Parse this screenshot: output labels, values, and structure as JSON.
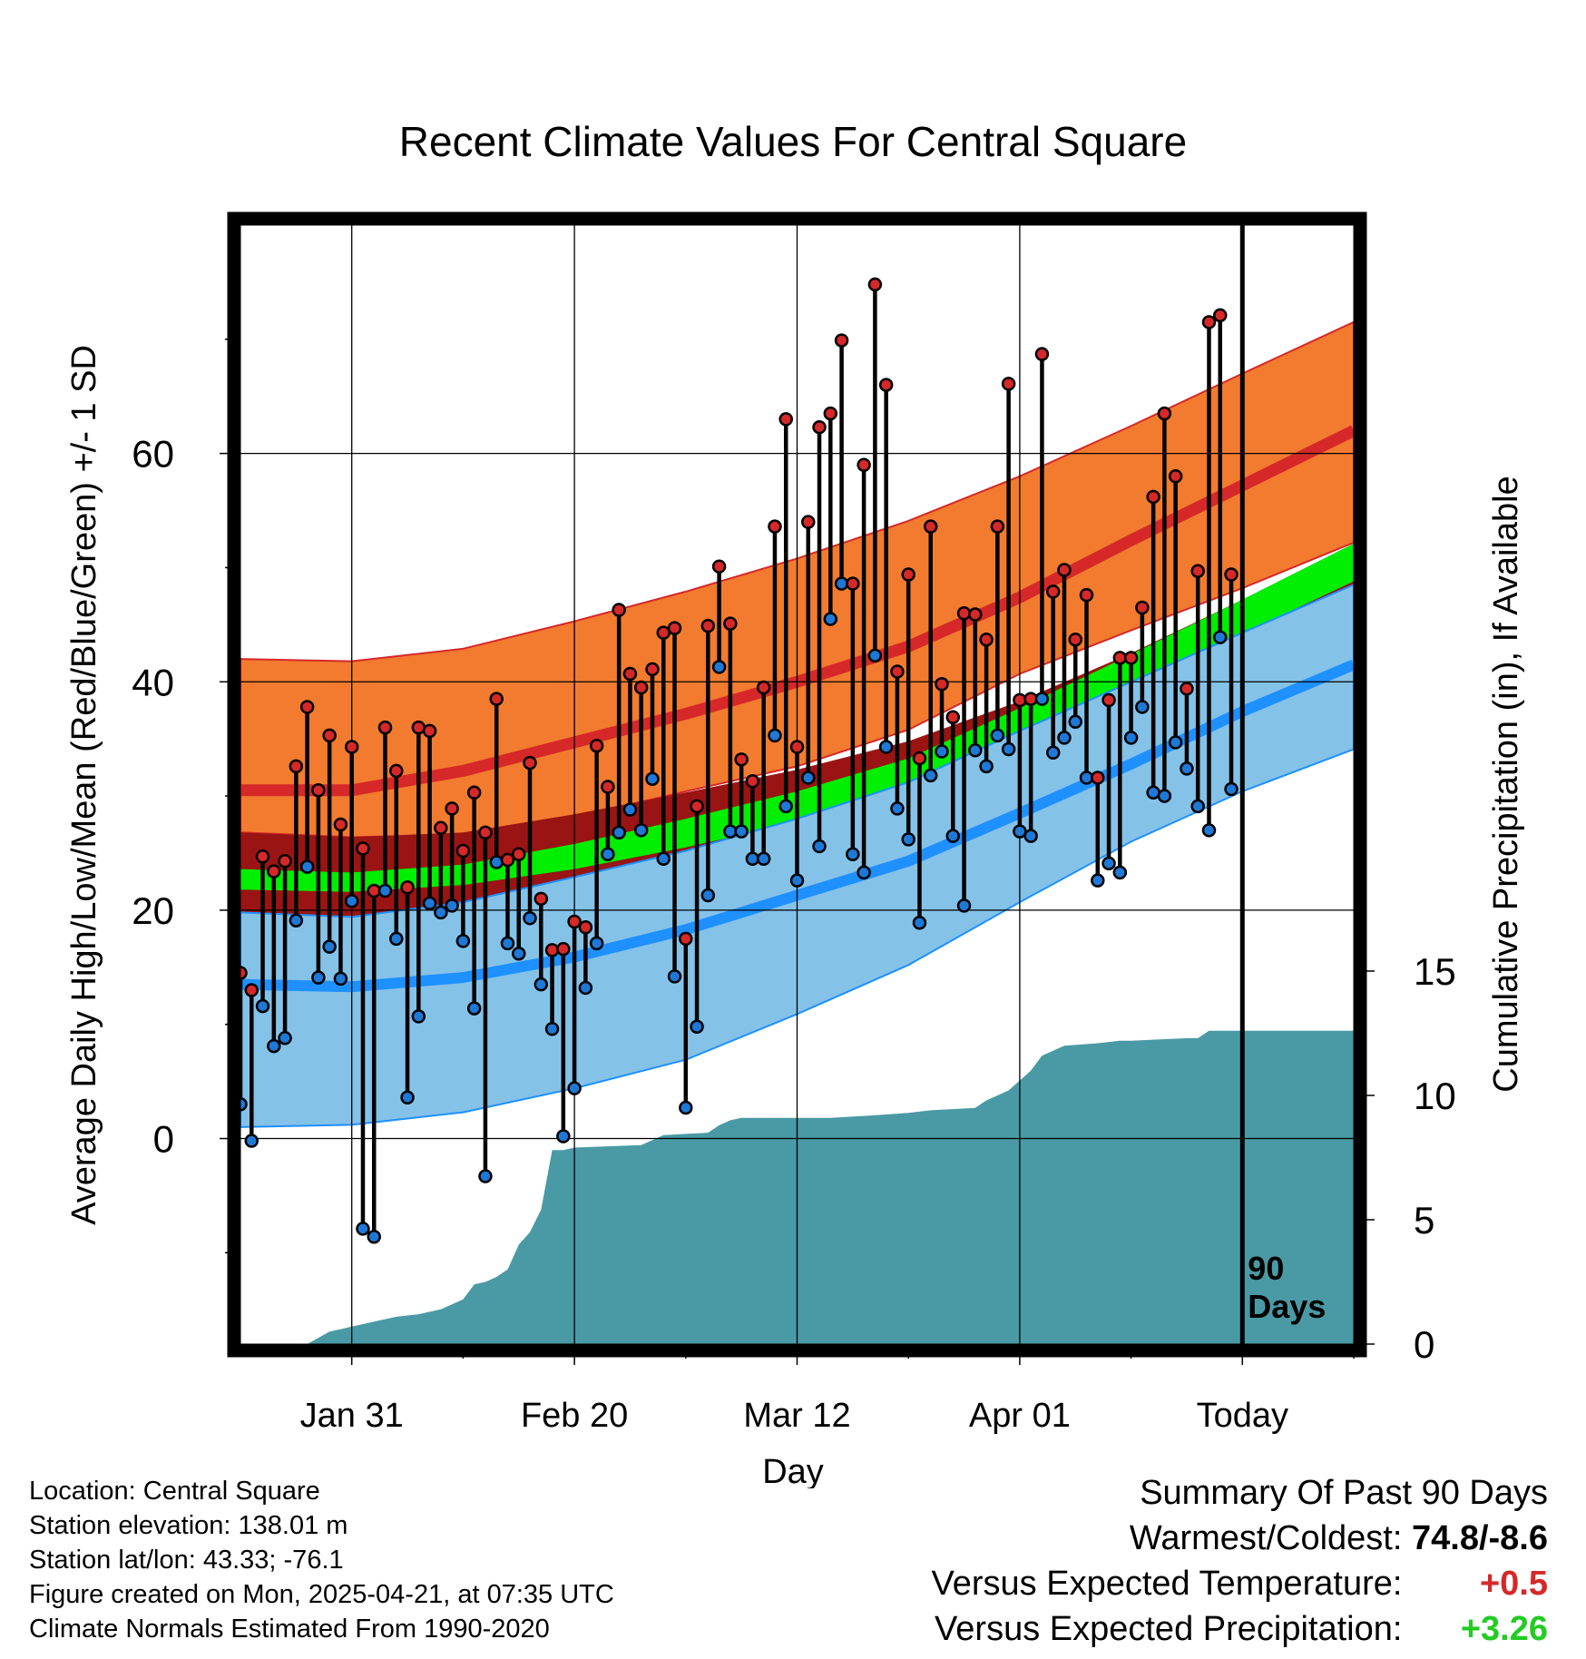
{
  "chart_data": {
    "type": "line",
    "title": "Recent Climate Values For Central Square",
    "xlabel": "Day",
    "ylabel": "Average Daily High/Low/Mean (Red/Blue/Green) +/- 1 SD",
    "y2label": "Cumulative Precipitation (in), If Available",
    "xlim": [
      0,
      100
    ],
    "ylim": [
      -18,
      80
    ],
    "y2lim": [
      0,
      45
    ],
    "x_ticks": [
      {
        "x": 10,
        "label": "Jan 31"
      },
      {
        "x": 30,
        "label": "Feb 20"
      },
      {
        "x": 50,
        "label": "Mar 12"
      },
      {
        "x": 70,
        "label": "Apr 01"
      },
      {
        "x": 90,
        "label": "Today"
      }
    ],
    "y_ticks": [
      0,
      20,
      40,
      60
    ],
    "y2_ticks": [
      0,
      5,
      10,
      15
    ],
    "today_x": 90,
    "today_label": [
      "90",
      "Days"
    ],
    "normals": {
      "x": [
        0,
        10,
        20,
        30,
        40,
        50,
        60,
        70,
        80,
        90,
        100
      ],
      "high_mean": [
        30.5,
        30.5,
        32.2,
        34.7,
        37.2,
        40.0,
        43.1,
        47.4,
        52.4,
        57.2,
        62.0
      ],
      "high_sd_upper": [
        42.0,
        41.8,
        42.9,
        45.3,
        47.9,
        50.8,
        54.1,
        58.0,
        62.4,
        67.0,
        71.5
      ],
      "high_sd_lower": [
        26.8,
        26.4,
        26.6,
        28.1,
        30.4,
        32.6,
        35.8,
        40.7,
        44.5,
        48.2,
        52.2
      ],
      "mean_upper": [
        23.6,
        23.3,
        24.0,
        25.8,
        28.0,
        30.4,
        33.3,
        37.7,
        42.4,
        47.2,
        52.1
      ],
      "mean_lower": [
        21.8,
        21.6,
        22.2,
        23.6,
        25.5,
        27.7,
        30.8,
        34.9,
        39.4,
        44.2,
        48.8
      ],
      "low_mean": [
        13.5,
        13.3,
        14.1,
        15.9,
        18.3,
        21.3,
        24.3,
        28.5,
        32.8,
        37.4,
        41.5
      ],
      "low_sd_upper": [
        19.8,
        19.4,
        20.7,
        22.9,
        25.2,
        28.0,
        31.2,
        35.7,
        40.0,
        44.3,
        48.5
      ],
      "low_sd_lower": [
        1.0,
        1.2,
        2.3,
        4.4,
        6.9,
        10.9,
        15.2,
        20.7,
        26.0,
        30.4,
        34.1
      ],
      "dark_band_upper": [
        26.8,
        26.4,
        26.8,
        28.4,
        30.3,
        32.3,
        34.8,
        38.3,
        42.5,
        47.2,
        52.1
      ],
      "dark_band_lower": [
        19.5,
        19.5,
        20.4,
        22.3,
        24.4,
        26.6,
        29.4,
        33.4,
        37.9,
        42.8,
        47.2
      ]
    },
    "daily": {
      "x": [
        0,
        1,
        2,
        3,
        4,
        5,
        6,
        7,
        8,
        9,
        10,
        11,
        12,
        13,
        14,
        15,
        16,
        17,
        18,
        19,
        20,
        21,
        22,
        23,
        24,
        25,
        26,
        27,
        28,
        29,
        30,
        31,
        32,
        33,
        34,
        35,
        36,
        37,
        38,
        39,
        40,
        41,
        42,
        43,
        44,
        45,
        46,
        47,
        48,
        49,
        50,
        51,
        52,
        53,
        54,
        55,
        56,
        57,
        58,
        59,
        60,
        61,
        62,
        63,
        64,
        65,
        66,
        67,
        68,
        69,
        70,
        71,
        72,
        73,
        74,
        75,
        76,
        77,
        78,
        79,
        80,
        81,
        82,
        83,
        84,
        85,
        86,
        87,
        88,
        89
      ],
      "high": [
        14.5,
        13.0,
        24.7,
        23.4,
        24.3,
        32.6,
        37.8,
        30.5,
        35.3,
        27.5,
        34.3,
        25.4,
        21.7,
        36.0,
        32.2,
        22.0,
        36.0,
        35.7,
        27.2,
        28.9,
        25.2,
        30.3,
        26.8,
        38.5,
        24.4,
        24.9,
        32.9,
        21.0,
        16.5,
        16.6,
        19.0,
        18.5,
        34.4,
        30.8,
        46.3,
        40.7,
        39.5,
        41.1,
        44.3,
        44.7,
        17.5,
        29.1,
        44.9,
        50.1,
        45.1,
        33.2,
        31.3,
        39.5,
        53.6,
        63.0,
        34.3,
        54.0,
        62.3,
        63.5,
        69.9,
        48.6,
        59.0,
        74.8,
        66.0,
        40.9,
        49.4,
        33.3,
        53.6,
        39.8,
        36.9,
        46.0,
        45.9,
        43.7,
        53.6,
        66.1,
        38.4,
        38.5,
        68.7,
        47.9,
        49.8,
        43.7,
        47.6,
        31.6,
        38.4,
        42.1,
        42.1,
        46.5,
        56.2,
        63.5,
        58.0,
        39.4,
        49.7,
        71.5,
        72.1,
        49.4
      ],
      "low": [
        3.0,
        -0.2,
        11.6,
        8.1,
        8.8,
        19.1,
        23.8,
        14.1,
        16.8,
        14.0,
        20.8,
        -7.9,
        -8.6,
        21.7,
        17.5,
        3.6,
        10.7,
        20.6,
        19.8,
        20.4,
        17.3,
        11.4,
        -3.3,
        24.2,
        17.1,
        16.2,
        19.3,
        13.5,
        9.6,
        0.2,
        4.4,
        13.2,
        17.1,
        24.9,
        26.8,
        28.8,
        27.0,
        31.5,
        24.5,
        14.2,
        2.7,
        9.8,
        21.3,
        41.3,
        26.9,
        26.9,
        24.5,
        24.5,
        35.3,
        29.1,
        22.6,
        31.6,
        25.6,
        45.5,
        48.6,
        24.9,
        23.3,
        42.3,
        34.3,
        28.9,
        26.2,
        18.9,
        31.8,
        33.9,
        26.5,
        20.4,
        34.0,
        32.6,
        35.3,
        34.1,
        26.9,
        26.5,
        38.5,
        33.8,
        35.1,
        36.5,
        31.6,
        22.6,
        24.1,
        23.3,
        35.1,
        37.8,
        30.3,
        30.0,
        34.7,
        32.4,
        29.1,
        27.0,
        43.9,
        30.6
      ]
    },
    "precip": {
      "x": [
        0,
        6,
        8,
        10,
        12,
        14,
        16,
        18,
        19,
        20,
        21,
        22,
        23,
        24,
        25,
        26,
        27,
        28,
        29,
        30,
        36,
        38,
        42,
        43,
        44,
        45,
        50,
        53,
        57,
        60,
        62,
        66,
        67,
        68,
        69,
        70,
        71,
        72,
        73,
        74,
        77,
        79,
        80,
        85,
        86,
        87,
        100
      ],
      "cumulative": [
        0,
        0,
        0.5,
        0.7,
        0.9,
        1.1,
        1.2,
        1.4,
        1.6,
        1.8,
        2.4,
        2.5,
        2.7,
        3.0,
        4.0,
        4.5,
        5.4,
        7.8,
        7.8,
        7.9,
        8.0,
        8.4,
        8.5,
        8.8,
        9.0,
        9.1,
        9.1,
        9.1,
        9.2,
        9.3,
        9.4,
        9.5,
        9.8,
        10.0,
        10.2,
        10.6,
        11.0,
        11.6,
        11.8,
        12.0,
        12.1,
        12.2,
        12.2,
        12.3,
        12.3,
        12.6,
        12.6
      ]
    },
    "colors": {
      "high_band": "#f27b2f",
      "high_line": "#d62828",
      "dark_band": "#9a1414",
      "mean_band": "#00ee00",
      "low_band": "#85c2e8",
      "low_line": "#1e90ff",
      "precip": "#4a9aa5",
      "high_dot": "#d62828",
      "low_dot": "#1e78d6"
    }
  },
  "info": {
    "location": "Location: Central Square",
    "elevation": "Station elevation: 138.01 m",
    "latlon": "Station lat/lon: 43.33; -76.1",
    "created": "Figure created on Mon, 2025-04-21, at 07:35 UTC",
    "normals": "Climate Normals Estimated From 1990-2020"
  },
  "summary": {
    "title": "Summary Of Past 90 Days",
    "warmest_label": "Warmest/Coldest:",
    "warmest_value": "74.8/-8.6",
    "temp_label": "Versus Expected Temperature:",
    "temp_value": "+0.5",
    "temp_color": "#d62828",
    "precip_label": "Versus Expected Precipitation:",
    "precip_value": "+3.26",
    "precip_color": "#22cc22"
  }
}
